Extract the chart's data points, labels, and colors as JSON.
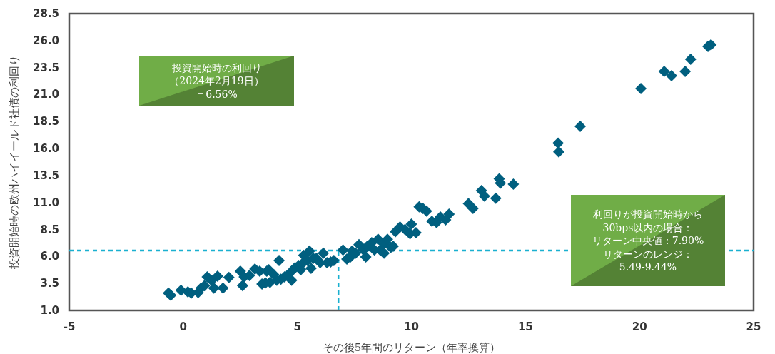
{
  "chart_data": {
    "type": "scatter",
    "xlabel": "その後5年間のリターン（年率換算）",
    "ylabel": "投資開始時の欧州ハイイールド社債の利回り",
    "marker": "diamond",
    "grid": false,
    "xlim": [
      -5,
      25
    ],
    "xticks": [
      -5,
      0,
      5,
      10,
      15,
      20,
      25
    ],
    "ylim": [
      1,
      28.5
    ],
    "yticks": [
      {
        "value": 1,
        "label": "1.0"
      },
      3.5,
      {
        "value": 6,
        "label": "6.0"
      },
      8.5,
      {
        "value": 11,
        "label": "11.0"
      },
      13.5,
      {
        "value": 16,
        "label": "16.0"
      },
      18.5,
      {
        "value": 21,
        "label": "21.0"
      },
      23.5,
      {
        "value": 26,
        "label": "26.0"
      },
      28.5
    ],
    "ref_lines": [
      {
        "axis": "y",
        "value": 6.56,
        "color": "#1ab0d0",
        "line_style": "dashed"
      },
      {
        "axis": "x",
        "value": 6.8,
        "color": "#1ab0d0",
        "line_style": "dashed"
      }
    ],
    "annotations": [
      "投資開始時の利回り",
      "（2024年2月19日）",
      "＝6.56%",
      "利回りが投資開始時から",
      "30bps以内の場合：",
      "リターン中央値：7.90%",
      "リターンのレンジ：",
      "5.49-9.44%"
    ],
    "series": [
      {
        "color": "#005f7f",
        "x": [
          -0.65,
          -0.55,
          -0.1,
          0.2,
          0.35,
          0.65,
          0.78,
          0.93,
          1.05,
          1.24,
          1.34,
          1.5,
          1.74,
          2.0,
          2.5,
          2.6,
          2.67,
          2.9,
          3.14,
          3.35,
          3.45,
          3.6,
          3.66,
          3.75,
          3.8,
          3.97,
          4.1,
          4.2,
          4.28,
          4.44,
          4.6,
          4.75,
          4.75,
          4.9,
          5.06,
          5.15,
          5.2,
          5.28,
          5.44,
          5.53,
          5.6,
          5.7,
          5.84,
          6.0,
          6.14,
          6.3,
          6.46,
          6.6,
          7.0,
          7.17,
          7.33,
          7.4,
          7.55,
          7.7,
          7.9,
          8.0,
          8.07,
          8.26,
          8.38,
          8.54,
          8.63,
          8.8,
          8.8,
          8.95,
          9.1,
          9.2,
          9.3,
          9.5,
          9.72,
          9.94,
          10.0,
          10.2,
          10.34,
          10.5,
          10.66,
          10.9,
          11.1,
          11.27,
          11.5,
          11.65,
          12.5,
          12.7,
          13.07,
          13.2,
          13.7,
          13.85,
          13.9,
          14.47,
          16.43,
          16.46,
          17.4,
          20.06,
          21.08,
          21.4,
          22.0,
          22.24,
          23.0,
          23.13
        ],
        "values": [
          2.6,
          2.4,
          2.86,
          2.72,
          2.6,
          2.66,
          3.06,
          3.3,
          4.1,
          3.78,
          3.06,
          4.17,
          3.06,
          4.05,
          4.64,
          3.3,
          4.1,
          4.24,
          4.84,
          4.64,
          3.45,
          3.55,
          4.64,
          4.77,
          3.6,
          4.3,
          3.8,
          5.63,
          3.9,
          4.1,
          4.3,
          4.64,
          3.8,
          4.97,
          5.17,
          4.77,
          5.3,
          6.1,
          5.63,
          6.5,
          4.9,
          5.83,
          5.83,
          5.43,
          6.3,
          5.43,
          5.5,
          5.63,
          6.6,
          5.76,
          5.96,
          6.5,
          6.3,
          7.1,
          6.6,
          5.96,
          6.95,
          7.28,
          6.6,
          7.6,
          6.6,
          7.15,
          6.3,
          7.6,
          6.85,
          6.95,
          8.3,
          8.74,
          8.5,
          8.1,
          9.0,
          8.2,
          10.6,
          10.46,
          10.2,
          9.27,
          9.14,
          9.66,
          9.4,
          9.93,
          10.9,
          10.46,
          12.1,
          11.6,
          11.4,
          13.2,
          12.8,
          12.7,
          16.5,
          15.7,
          18.06,
          21.56,
          23.15,
          22.75,
          23.15,
          24.27,
          25.46,
          25.6
        ]
      }
    ]
  }
}
